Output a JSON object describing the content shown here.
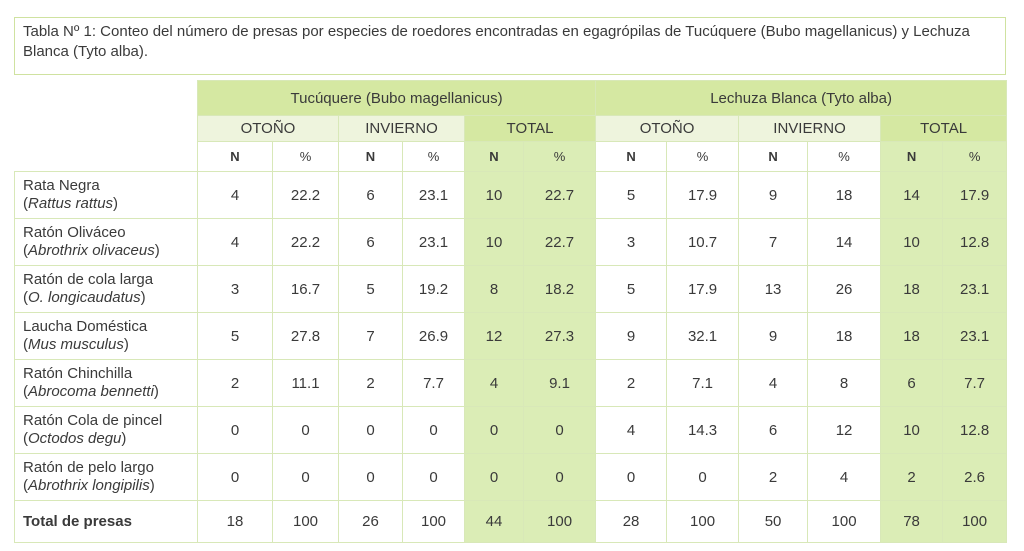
{
  "caption": "Tabla Nº 1: Conteo del número de presas por especies de roedores encontradas en egagrópilas de Tucúquere (Bubo magellanicus) y Lechuza Blanca (Tyto alba).",
  "groups": [
    "Tucúquere (Bubo magellanicus)",
    "Lechuza Blanca (Tyto alba)"
  ],
  "seasons": [
    "OTOÑO",
    "INVIERNO",
    "TOTAL",
    "OTOÑO",
    "INVIERNO",
    "TOTAL"
  ],
  "col_n": "N",
  "col_pct": "%",
  "rows": [
    {
      "common": "Rata Negra",
      "sci": "Rattus rattus",
      "values": [
        "4",
        "22.2",
        "6",
        "23.1",
        "10",
        "22.7",
        "5",
        "17.9",
        "9",
        "18",
        "14",
        "17.9"
      ]
    },
    {
      "common": "Ratón Oliváceo",
      "sci": "Abrothrix olivaceus",
      "values": [
        "4",
        "22.2",
        "6",
        "23.1",
        "10",
        "22.7",
        "3",
        "10.7",
        "7",
        "14",
        "10",
        "12.8"
      ]
    },
    {
      "common": "Ratón de cola larga",
      "sci": "O. longicaudatus",
      "values": [
        "3",
        "16.7",
        "5",
        "19.2",
        "8",
        "18.2",
        "5",
        "17.9",
        "13",
        "26",
        "18",
        "23.1"
      ]
    },
    {
      "common": "Laucha Doméstica",
      "sci": "Mus musculus",
      "values": [
        "5",
        "27.8",
        "7",
        "26.9",
        "12",
        "27.3",
        "9",
        "32.1",
        "9",
        "18",
        "18",
        "23.1"
      ]
    },
    {
      "common": "Ratón Chinchilla",
      "sci": "Abrocoma bennetti",
      "values": [
        "2",
        "11.1",
        "2",
        "7.7",
        "4",
        "9.1",
        "2",
        "7.1",
        "4",
        "8",
        "6",
        "7.7"
      ]
    },
    {
      "common": "Ratón Cola de pincel",
      "sci": "Octodos degu",
      "values": [
        "0",
        "0",
        "0",
        "0",
        "0",
        "0",
        "4",
        "14.3",
        "6",
        "12",
        "10",
        "12.8"
      ]
    },
    {
      "common": "Ratón de pelo largo",
      "sci": "Abrothrix longipilis",
      "values": [
        "0",
        "0",
        "0",
        "0",
        "0",
        "0",
        "0",
        "0",
        "2",
        "4",
        "2",
        "2.6"
      ]
    }
  ],
  "total_row": {
    "label": "Total de presas",
    "values": [
      "18",
      "100",
      "26",
      "100",
      "44",
      "100",
      "28",
      "100",
      "50",
      "100",
      "78",
      "100"
    ]
  },
  "colors": {
    "header_green": "#d5e8a2",
    "sub_light": "#eef4dd",
    "total_col": "#dbedb6",
    "border": "#d8e8b8"
  }
}
